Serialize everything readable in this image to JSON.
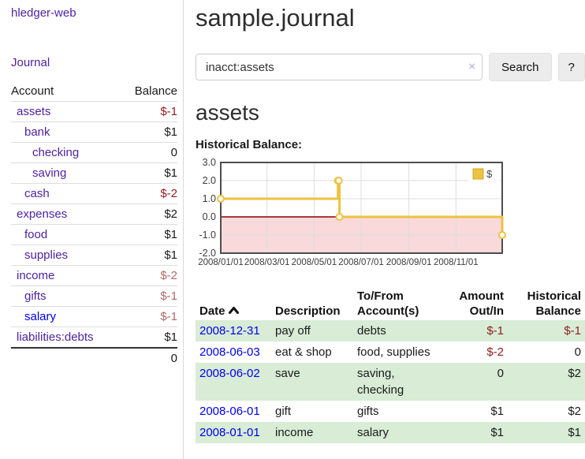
{
  "app": {
    "brand": "hledger-web",
    "nav_journal": "Journal"
  },
  "sidebar": {
    "headers": {
      "account": "Account",
      "balance": "Balance"
    },
    "accounts": [
      {
        "name": "assets",
        "balance": "$-1",
        "depth": 1,
        "bold": true,
        "balance_class": "neg-strong",
        "link": "purple"
      },
      {
        "name": "bank",
        "balance": "$1",
        "depth": 2,
        "bold": true,
        "balance_class": "",
        "link": "purple"
      },
      {
        "name": "checking",
        "balance": "0",
        "depth": 3,
        "bold": true,
        "balance_class": "",
        "link": "purple"
      },
      {
        "name": "saving",
        "balance": "$1",
        "depth": 3,
        "bold": true,
        "balance_class": "",
        "link": "purple"
      },
      {
        "name": "cash",
        "balance": "$-2",
        "depth": 2,
        "bold": true,
        "balance_class": "neg-strong",
        "link": "purple"
      },
      {
        "name": "expenses",
        "balance": "$2",
        "depth": 1,
        "bold": false,
        "balance_class": "",
        "link": "purple"
      },
      {
        "name": "food",
        "balance": "$1",
        "depth": 2,
        "bold": false,
        "balance_class": "",
        "link": "purple"
      },
      {
        "name": "supplies",
        "balance": "$1",
        "depth": 2,
        "bold": false,
        "balance_class": "",
        "link": "purple"
      },
      {
        "name": "income",
        "balance": "$-2",
        "depth": 1,
        "bold": false,
        "balance_class": "neg-soft",
        "link": "purple"
      },
      {
        "name": "gifts",
        "balance": "$-1",
        "depth": 2,
        "bold": false,
        "balance_class": "neg-soft",
        "link": "purple"
      },
      {
        "name": "salary",
        "balance": "$-1",
        "depth": 2,
        "bold": false,
        "balance_class": "neg-soft",
        "link": "blue"
      },
      {
        "name": "liabilities:debts",
        "balance": "$1",
        "depth": 1,
        "bold": false,
        "balance_class": "",
        "link": "purple"
      }
    ],
    "total": "0"
  },
  "header": {
    "title": "sample.journal"
  },
  "search": {
    "value": "inacct:assets",
    "clear": "×",
    "button": "Search",
    "help": "?"
  },
  "account_page": {
    "heading": "assets",
    "chart_label": "Historical Balance:"
  },
  "chart_data": {
    "type": "line",
    "title": "Historical Balance:",
    "step": true,
    "series": [
      {
        "name": "$",
        "color": "#edc240",
        "points": [
          [
            "2008-01-01",
            1
          ],
          [
            "2008-06-01",
            2
          ],
          [
            "2008-06-02",
            2
          ],
          [
            "2008-06-03",
            0
          ],
          [
            "2008-12-31",
            -1
          ]
        ]
      }
    ],
    "x_range": [
      "2008-01-01",
      "2008-12-31"
    ],
    "x_ticks": [
      "2008/01/01",
      "2008/03/01",
      "2008/05/01",
      "2008/07/01",
      "2008/09/01",
      "2008/11/01"
    ],
    "y_ticks": [
      3.0,
      2.0,
      1.0,
      0.0,
      -1.0,
      -2.0
    ],
    "ylim": [
      -2,
      3
    ],
    "legend": {
      "label": "$",
      "position": "top-right",
      "swatch_color": "#edc240"
    },
    "grid": true,
    "colors": {
      "line": "#edc240",
      "marker_fill": "#ffffff",
      "negative_region": "#f9d9d9",
      "zero_line": "#8b0000",
      "gridline": "#dddddd",
      "border": "#4d4d4d",
      "tick_text": "#3c3c3c"
    }
  },
  "register": {
    "columns": [
      {
        "line1": "Date",
        "line2": "",
        "align": "left",
        "sortable": true
      },
      {
        "line1": "Description",
        "line2": "",
        "align": "left",
        "sortable": false
      },
      {
        "line1": "To/From",
        "line2": "Account(s)",
        "align": "left",
        "sortable": false
      },
      {
        "line1": "Amount",
        "line2": "Out/In",
        "align": "right",
        "sortable": false
      },
      {
        "line1": "Historical",
        "line2": "Balance",
        "align": "right",
        "sortable": false
      }
    ],
    "rows": [
      {
        "date": "2008-12-31",
        "description": "pay off",
        "accounts": "debts",
        "amount": "$-1",
        "balance": "$-1",
        "amount_class": "neg-strong",
        "balance_class": "neg-strong",
        "shaded": true
      },
      {
        "date": "2008-06-03",
        "description": "eat & shop",
        "accounts": "food, supplies",
        "amount": "$-2",
        "balance": "0",
        "amount_class": "neg-strong",
        "balance_class": "",
        "shaded": false
      },
      {
        "date": "2008-06-02",
        "description": "save",
        "accounts": "saving, checking",
        "amount": "0",
        "balance": "$2",
        "amount_class": "",
        "balance_class": "",
        "shaded": true
      },
      {
        "date": "2008-06-01",
        "description": "gift",
        "accounts": "gifts",
        "amount": "$1",
        "balance": "$2",
        "amount_class": "",
        "balance_class": "",
        "shaded": false
      },
      {
        "date": "2008-01-01",
        "description": "income",
        "accounts": "salary",
        "amount": "$1",
        "balance": "$1",
        "amount_class": "",
        "balance_class": "",
        "shaded": true
      }
    ]
  },
  "colors": {
    "link_purple": "#4e22a0",
    "link_blue": "#0000ee",
    "negative_strong": "#8f1d1d",
    "negative_soft": "#b26868",
    "row_shaded_green": "#d8ecd6"
  }
}
